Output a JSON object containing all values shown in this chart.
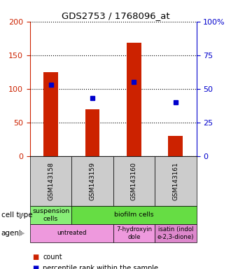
{
  "title": "GDS2753 / 1768096_at",
  "samples": [
    "GSM143158",
    "GSM143159",
    "GSM143160",
    "GSM143161"
  ],
  "counts": [
    125,
    70,
    168,
    30
  ],
  "percentile_ranks": [
    53,
    43,
    55,
    40
  ],
  "ylim_left": [
    0,
    200
  ],
  "ylim_right": [
    0,
    100
  ],
  "yticks_left": [
    0,
    50,
    100,
    150,
    200
  ],
  "yticks_right": [
    0,
    25,
    50,
    75,
    100
  ],
  "ytick_labels_right": [
    "0",
    "25",
    "50",
    "75",
    "100%"
  ],
  "bar_color": "#cc2200",
  "dot_color": "#0000cc",
  "bar_width": 0.35,
  "cell_type_row": {
    "label": "cell type",
    "groups": [
      {
        "text": "suspension\ncells",
        "span": [
          0,
          1
        ],
        "color": "#88ee77"
      },
      {
        "text": "biofilm cells",
        "span": [
          1,
          4
        ],
        "color": "#66dd44"
      }
    ]
  },
  "agent_row": {
    "label": "agent",
    "groups": [
      {
        "text": "untreated",
        "span": [
          0,
          2
        ],
        "color": "#ee99dd"
      },
      {
        "text": "7-hydroxyin\ndole",
        "span": [
          2,
          3
        ],
        "color": "#ee99dd"
      },
      {
        "text": "isatin (indol\ne-2,3-dione)",
        "span": [
          3,
          4
        ],
        "color": "#dd88cc"
      }
    ]
  },
  "legend_items": [
    {
      "color": "#cc2200",
      "label": "count"
    },
    {
      "color": "#0000cc",
      "label": "percentile rank within the sample"
    }
  ],
  "axis_left_color": "#cc2200",
  "axis_right_color": "#0000cc",
  "sample_box_color": "#cccccc"
}
